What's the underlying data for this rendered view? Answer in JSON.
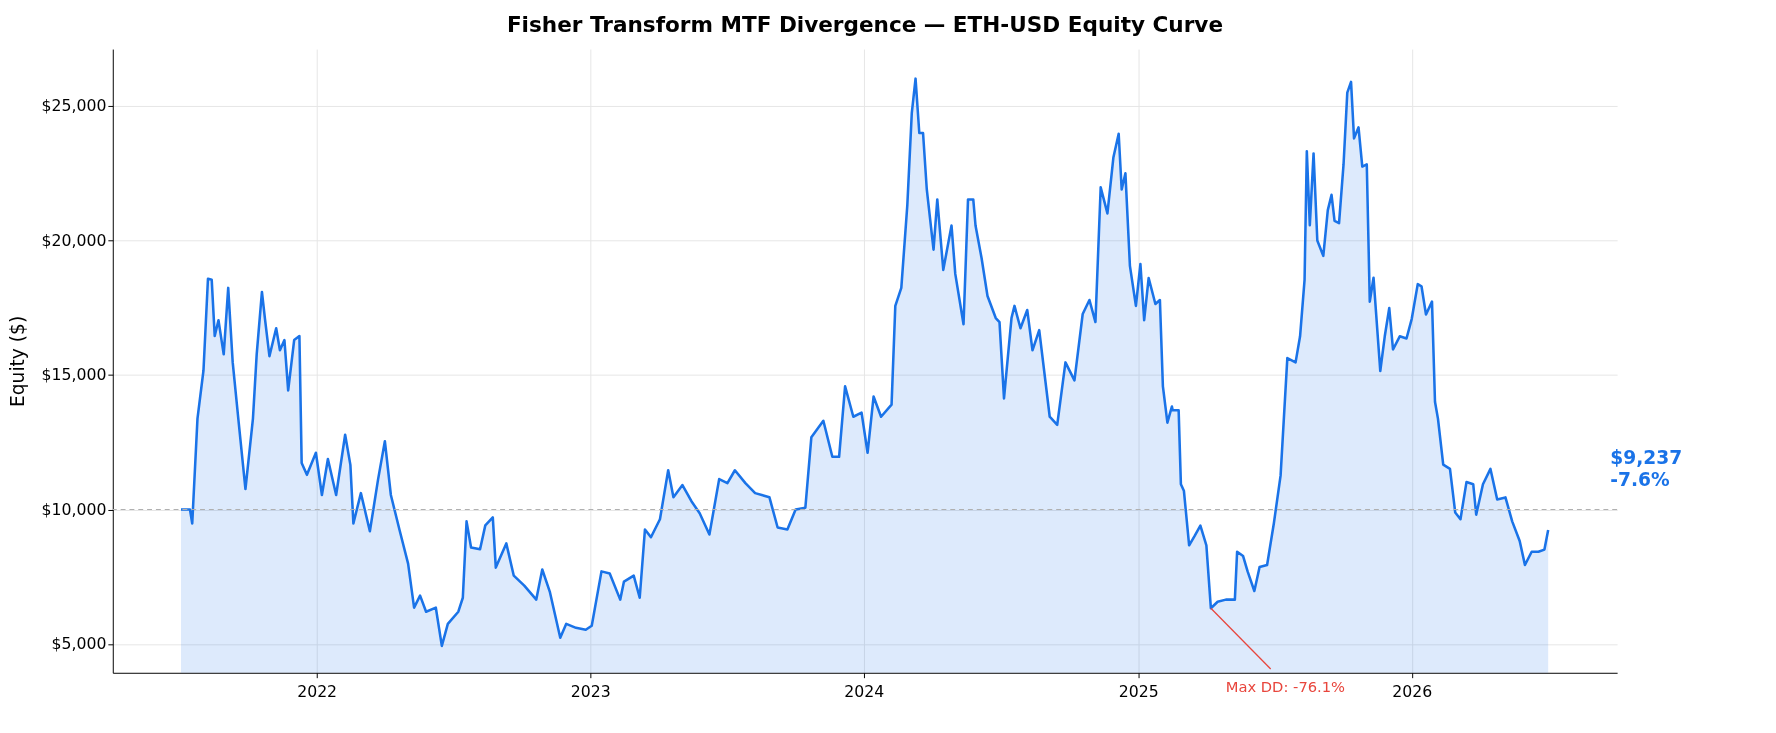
{
  "chart_data": {
    "type": "area",
    "title": "Fisher Transform MTF Divergence — ETH-USD Equity Curve",
    "ylabel": "Equity ($)",
    "x": [
      "2021-07-04",
      "2021-07-16",
      "2021-07-19",
      "2021-07-26",
      "2021-08-03",
      "2021-08-09",
      "2021-08-14",
      "2021-08-18",
      "2021-08-23",
      "2021-08-30",
      "2021-09-05",
      "2021-09-11",
      "2021-09-19",
      "2021-09-28",
      "2021-10-08",
      "2021-10-13",
      "2021-10-20",
      "2021-10-24",
      "2021-10-30",
      "2021-11-08",
      "2021-11-13",
      "2021-11-19",
      "2021-11-24",
      "2021-12-02",
      "2021-12-09",
      "2021-12-12",
      "2021-12-19",
      "2021-12-31",
      "2022-01-08",
      "2022-01-16",
      "2022-01-27",
      "2022-02-08",
      "2022-02-15",
      "2022-02-19",
      "2022-03-01",
      "2022-03-13",
      "2022-03-24",
      "2022-04-02",
      "2022-04-10",
      "2022-04-22",
      "2022-05-03",
      "2022-05-11",
      "2022-05-19",
      "2022-05-27",
      "2022-06-09",
      "2022-06-17",
      "2022-06-25",
      "2022-07-09",
      "2022-07-15",
      "2022-07-20",
      "2022-07-26",
      "2022-08-07",
      "2022-08-14",
      "2022-08-24",
      "2022-08-28",
      "2022-09-11",
      "2022-09-21",
      "2022-10-05",
      "2022-10-21",
      "2022-10-29",
      "2022-11-08",
      "2022-11-22",
      "2022-11-30",
      "2022-12-13",
      "2022-12-26",
      "2023-01-03",
      "2023-01-16",
      "2023-01-27",
      "2023-02-10",
      "2023-02-15",
      "2023-02-28",
      "2023-03-08",
      "2023-03-15",
      "2023-03-23",
      "2023-04-04",
      "2023-04-15",
      "2023-04-22",
      "2023-05-04",
      "2023-05-16",
      "2023-05-27",
      "2023-06-09",
      "2023-06-22",
      "2023-07-03",
      "2023-07-13",
      "2023-07-27",
      "2023-08-09",
      "2023-08-28",
      "2023-09-08",
      "2023-09-21",
      "2023-10-02",
      "2023-10-15",
      "2023-10-23",
      "2023-11-08",
      "2023-11-20",
      "2023-11-29",
      "2023-12-07",
      "2023-12-18",
      "2023-12-29",
      "2024-01-06",
      "2024-01-14",
      "2024-01-24",
      "2024-02-07",
      "2024-02-12",
      "2024-02-20",
      "2024-02-28",
      "2024-03-05",
      "2024-03-10",
      "2024-03-15",
      "2024-03-20",
      "2024-03-25",
      "2024-04-03",
      "2024-04-08",
      "2024-04-16",
      "2024-04-27",
      "2024-05-02",
      "2024-05-13",
      "2024-05-19",
      "2024-05-26",
      "2024-05-29",
      "2024-06-06",
      "2024-06-14",
      "2024-06-25",
      "2024-06-30",
      "2024-07-06",
      "2024-07-16",
      "2024-07-20",
      "2024-07-28",
      "2024-08-06",
      "2024-08-13",
      "2024-08-22",
      "2024-09-05",
      "2024-09-15",
      "2024-09-26",
      "2024-10-08",
      "2024-10-19",
      "2024-10-28",
      "2024-11-05",
      "2024-11-12",
      "2024-11-21",
      "2024-11-29",
      "2024-12-06",
      "2024-12-10",
      "2024-12-15",
      "2024-12-21",
      "2024-12-29",
      "2025-01-04",
      "2025-01-09",
      "2025-01-15",
      "2025-01-24",
      "2025-01-30",
      "2025-02-03",
      "2025-02-09",
      "2025-02-15",
      "2025-02-16",
      "2025-02-24",
      "2025-02-27",
      "2025-03-03",
      "2025-03-10",
      "2025-03-17",
      "2025-03-25",
      "2025-04-02",
      "2025-04-08",
      "2025-04-17",
      "2025-04-28",
      "2025-05-10",
      "2025-05-13",
      "2025-05-21",
      "2025-05-27",
      "2025-06-05",
      "2025-06-12",
      "2025-06-22",
      "2025-07-01",
      "2025-07-10",
      "2025-07-19",
      "2025-07-30",
      "2025-08-05",
      "2025-08-11",
      "2025-08-14",
      "2025-08-18",
      "2025-08-23",
      "2025-08-28",
      "2025-09-05",
      "2025-09-11",
      "2025-09-16",
      "2025-09-20",
      "2025-09-26",
      "2025-10-02",
      "2025-10-07",
      "2025-10-12",
      "2025-10-16",
      "2025-10-22",
      "2025-10-27",
      "2025-11-02",
      "2025-11-06",
      "2025-11-11",
      "2025-11-20",
      "2025-11-26",
      "2025-12-02",
      "2025-12-07",
      "2025-12-16",
      "2025-12-25",
      "2026-01-01",
      "2026-01-09",
      "2026-01-14",
      "2026-01-20",
      "2026-01-28",
      "2026-02-01",
      "2026-02-05",
      "2026-02-12",
      "2026-02-21",
      "2026-02-28",
      "2026-03-07",
      "2026-03-15",
      "2026-03-24",
      "2026-03-28",
      "2026-04-06",
      "2026-04-16",
      "2026-04-25",
      "2026-05-06",
      "2026-05-15",
      "2026-05-25",
      "2026-06-01",
      "2026-06-10",
      "2026-06-19",
      "2026-06-27",
      "2026-07-02"
    ],
    "series": [
      {
        "color": "#1a73e8",
        "values": [
          10000,
          10000,
          9480,
          13380,
          15170,
          18580,
          18540,
          16450,
          17040,
          15770,
          18240,
          15470,
          13230,
          10760,
          13380,
          15770,
          18090,
          17100,
          15700,
          16740,
          15920,
          16300,
          14430,
          16300,
          16450,
          11730,
          11290,
          12110,
          10540,
          11880,
          10540,
          12780,
          11660,
          9480,
          10610,
          9190,
          11130,
          12540,
          10540,
          9190,
          7990,
          6350,
          6800,
          6200,
          6350,
          4930,
          5750,
          6200,
          6720,
          9560,
          8590,
          8520,
          9410,
          9710,
          7840,
          8740,
          7540,
          7170,
          6650,
          7770,
          6950,
          5230,
          5750,
          5600,
          5530,
          5680,
          7700,
          7620,
          6650,
          7320,
          7540,
          6720,
          9260,
          8970,
          9640,
          11460,
          10460,
          10910,
          10310,
          9860,
          9070,
          11130,
          10980,
          11460,
          10980,
          10610,
          10460,
          9330,
          9260,
          10000,
          10070,
          12690,
          13300,
          11960,
          11960,
          14580,
          13450,
          13600,
          12110,
          14200,
          13450,
          13900,
          17570,
          18240,
          21310,
          24750,
          26020,
          24000,
          24000,
          21900,
          19660,
          21530,
          18910,
          20560,
          18760,
          16890,
          21530,
          21530,
          20560,
          19360,
          17940,
          17120,
          16970,
          14130,
          17120,
          17570,
          16740,
          17420,
          15920,
          16670,
          13450,
          13150,
          15470,
          14800,
          17270,
          17790,
          16970,
          21980,
          21010,
          23100,
          23970,
          21900,
          22500,
          19060,
          17570,
          19130,
          17040,
          18610,
          17640,
          17790,
          14580,
          13230,
          13830,
          13690,
          13690,
          10940,
          10700,
          8670,
          9000,
          9400,
          8670,
          6330,
          6570,
          6650,
          6650,
          8430,
          8270,
          7700,
          6970,
          7860,
          7940,
          9480,
          11260,
          15630,
          15470,
          16440,
          18540,
          23320,
          20570,
          23240,
          20000,
          19430,
          21130,
          21700,
          20730,
          20650,
          22830,
          25500,
          25900,
          23800,
          24210,
          22750,
          22830,
          17730,
          18620,
          15150,
          16440,
          17490,
          15950,
          16440,
          16360,
          17090,
          18380,
          18300,
          17250,
          17730,
          14010,
          13370,
          11670,
          11510,
          9890,
          9640,
          11020,
          10940,
          9810,
          10940,
          11510,
          10370,
          10450,
          9560,
          8830,
          7940,
          8430,
          8430,
          8510,
          9237
        ]
      }
    ],
    "xlim": [
      "2021-04-04",
      "2026-10-02"
    ],
    "ylim": [
      3930,
      27120
    ],
    "xticks": [
      "2022",
      "2023",
      "2024",
      "2025",
      "2026"
    ],
    "yticks": [
      {
        "value": 5000,
        "label": "$5,000"
      },
      {
        "value": 10000,
        "label": "$10,000"
      },
      {
        "value": 15000,
        "label": "$15,000"
      },
      {
        "value": 20000,
        "label": "$20,000"
      },
      {
        "value": 25000,
        "label": "$25,000"
      }
    ],
    "grid": true,
    "ref_lines": [
      {
        "axis": "y",
        "value": 10000,
        "color": "#b0b0b0",
        "line_style": "dashed"
      }
    ],
    "annotations": [
      "$9,237\n-7.6%",
      {
        "text": "Max DD: -76.1%",
        "x": "2025-04-08",
        "y": 6330
      }
    ]
  }
}
